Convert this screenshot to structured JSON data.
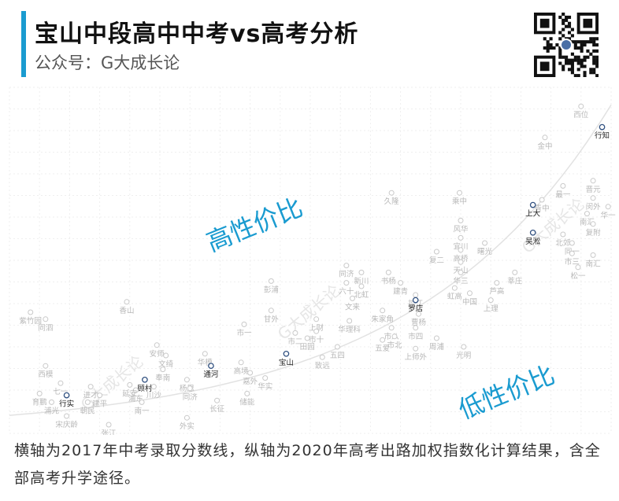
{
  "header": {
    "title": "宝山中段高中中考vs高考分析",
    "subtitle": "公众号：G大成长论",
    "accent_color": "#1a9bd0"
  },
  "chart_data": {
    "type": "scatter",
    "x_metric": "2017年中考录取分数线",
    "y_metric": "2020年高考出路加权指数",
    "xlim": [
      0,
      100
    ],
    "ylim": [
      0,
      100
    ],
    "grid": true,
    "trend": "curve",
    "region_labels": {
      "above": "高性价比",
      "below": "低性价比"
    },
    "watermark": "G大成长论",
    "highlight_color": "#2f4f7f",
    "point_color": "#c9c9c9",
    "points": [
      {
        "name": "西位",
        "x": 95.0,
        "y": 94.5,
        "hl": false
      },
      {
        "name": "行知",
        "x": 98.5,
        "y": 88.5,
        "hl": true
      },
      {
        "name": "金中",
        "x": 89.0,
        "y": 85.5,
        "hl": false
      },
      {
        "name": "久隆",
        "x": 63.5,
        "y": 69.5,
        "hl": false
      },
      {
        "name": "乘中",
        "x": 74.8,
        "y": 69.5,
        "hl": false
      },
      {
        "name": "最一",
        "x": 92.0,
        "y": 71.5,
        "hl": false
      },
      {
        "name": "晋元",
        "x": 97.0,
        "y": 73.0,
        "hl": false
      },
      {
        "name": "闵外",
        "x": 97.0,
        "y": 68.0,
        "hl": false
      },
      {
        "name": "华一",
        "x": 99.5,
        "y": 65.5,
        "hl": false
      },
      {
        "name": "青中",
        "x": 88.5,
        "y": 67.5,
        "hl": false
      },
      {
        "name": "上大",
        "x": 87.0,
        "y": 66.0,
        "hl": true
      },
      {
        "name": "南汇",
        "x": 96.0,
        "y": 63.5,
        "hl": false
      },
      {
        "name": "复附",
        "x": 97.0,
        "y": 60.5,
        "hl": false
      },
      {
        "name": "风华",
        "x": 75.0,
        "y": 61.5,
        "hl": false
      },
      {
        "name": "吴淞",
        "x": 87.0,
        "y": 58.0,
        "hl": true
      },
      {
        "name": "北郊",
        "x": 92.0,
        "y": 57.5,
        "hl": false
      },
      {
        "name": "宜川",
        "x": 75.0,
        "y": 56.5,
        "hl": false
      },
      {
        "name": "曙光",
        "x": 79.0,
        "y": 55.0,
        "hl": false
      },
      {
        "name": "同一",
        "x": 93.5,
        "y": 55.0,
        "hl": false
      },
      {
        "name": "高桥",
        "x": 75.0,
        "y": 53.0,
        "hl": false
      },
      {
        "name": "市三",
        "x": 93.5,
        "y": 52.0,
        "hl": false
      },
      {
        "name": "南汇",
        "x": 97.0,
        "y": 51.5,
        "hl": false
      },
      {
        "name": "复二",
        "x": 71.0,
        "y": 52.5,
        "hl": false
      },
      {
        "name": "天山",
        "x": 75.0,
        "y": 49.5,
        "hl": false
      },
      {
        "name": "松一",
        "x": 94.5,
        "y": 48.0,
        "hl": false
      },
      {
        "name": "华三",
        "x": 75.0,
        "y": 46.5,
        "hl": false
      },
      {
        "name": "莘庄",
        "x": 84.0,
        "y": 46.5,
        "hl": false
      },
      {
        "name": "芦高",
        "x": 81.0,
        "y": 43.5,
        "hl": false
      },
      {
        "name": "中国",
        "x": 76.5,
        "y": 40.5,
        "hl": false
      },
      {
        "name": "虹高",
        "x": 74.0,
        "y": 42.0,
        "hl": false
      },
      {
        "name": "上理",
        "x": 80.0,
        "y": 38.5,
        "hl": false
      },
      {
        "name": "同济",
        "x": 56.0,
        "y": 48.5,
        "hl": false
      },
      {
        "name": "新川",
        "x": 58.5,
        "y": 46.5,
        "hl": false
      },
      {
        "name": "书杨",
        "x": 63.0,
        "y": 46.5,
        "hl": false
      },
      {
        "name": "彭浦",
        "x": 43.5,
        "y": 44.0,
        "hl": false
      },
      {
        "name": "六十",
        "x": 56.0,
        "y": 43.5,
        "hl": false
      },
      {
        "name": "北虹",
        "x": 58.5,
        "y": 42.5,
        "hl": false
      },
      {
        "name": "建青",
        "x": 65.0,
        "y": 43.5,
        "hl": false
      },
      {
        "name": "控江",
        "x": 67.5,
        "y": 40.0,
        "hl": false
      },
      {
        "name": "文来",
        "x": 57.0,
        "y": 39.0,
        "hl": false
      },
      {
        "name": "罗店",
        "x": 67.5,
        "y": 38.5,
        "hl": true
      },
      {
        "name": "香山",
        "x": 19.5,
        "y": 38.0,
        "hl": false
      },
      {
        "name": "紫竹园",
        "x": 3.5,
        "y": 35.0,
        "hl": false
      },
      {
        "name": "甘外",
        "x": 43.5,
        "y": 35.5,
        "hl": false
      },
      {
        "name": "朱家角",
        "x": 62.0,
        "y": 35.5,
        "hl": false
      },
      {
        "name": "曹杨",
        "x": 68.0,
        "y": 34.5,
        "hl": false
      },
      {
        "name": "同泗",
        "x": 6.0,
        "y": 33.0,
        "hl": false
      },
      {
        "name": "华理科",
        "x": 56.5,
        "y": 32.5,
        "hl": false
      },
      {
        "name": "上财",
        "x": 51.0,
        "y": 33.0,
        "hl": false
      },
      {
        "name": "市一",
        "x": 39.0,
        "y": 31.5,
        "hl": false
      },
      {
        "name": "市八",
        "x": 63.5,
        "y": 30.5,
        "hl": false
      },
      {
        "name": "市四",
        "x": 67.5,
        "y": 30.5,
        "hl": false
      },
      {
        "name": "市十",
        "x": 51.0,
        "y": 29.5,
        "hl": false
      },
      {
        "name": "市二",
        "x": 47.5,
        "y": 29.0,
        "hl": false
      },
      {
        "name": "市北",
        "x": 64.0,
        "y": 28.0,
        "hl": false
      },
      {
        "name": "五爱",
        "x": 62.0,
        "y": 27.0,
        "hl": false
      },
      {
        "name": "周浦",
        "x": 71.0,
        "y": 27.5,
        "hl": false
      },
      {
        "name": "田园",
        "x": 49.5,
        "y": 27.5,
        "hl": false
      },
      {
        "name": "五四",
        "x": 54.5,
        "y": 25.0,
        "hl": false
      },
      {
        "name": "上师外",
        "x": 67.5,
        "y": 24.5,
        "hl": false
      },
      {
        "name": "光明",
        "x": 75.5,
        "y": 25.0,
        "hl": false
      },
      {
        "name": "安师",
        "x": 24.5,
        "y": 25.5,
        "hl": false
      },
      {
        "name": "华模",
        "x": 32.5,
        "y": 23.0,
        "hl": false
      },
      {
        "name": "宝山",
        "x": 46.0,
        "y": 23.0,
        "hl": true
      },
      {
        "name": "致远",
        "x": 52.0,
        "y": 22.0,
        "hl": false
      },
      {
        "name": "文绮",
        "x": 26.0,
        "y": 22.5,
        "hl": false
      },
      {
        "name": "西模",
        "x": 6.0,
        "y": 19.5,
        "hl": false
      },
      {
        "name": "通河",
        "x": 33.5,
        "y": 19.5,
        "hl": true
      },
      {
        "name": "高境",
        "x": 38.5,
        "y": 20.5,
        "hl": false
      },
      {
        "name": "嘉外",
        "x": 40.0,
        "y": 17.5,
        "hl": false
      },
      {
        "name": "华实",
        "x": 42.5,
        "y": 16.0,
        "hl": false
      },
      {
        "name": "奉南",
        "x": 25.5,
        "y": 18.5,
        "hl": false
      },
      {
        "name": "杨思",
        "x": 29.5,
        "y": 15.5,
        "hl": false
      },
      {
        "name": "顾村",
        "x": 22.5,
        "y": 15.5,
        "hl": true
      },
      {
        "name": "七一",
        "x": 8.5,
        "y": 14.5,
        "hl": false
      },
      {
        "name": "川沙",
        "x": 24.0,
        "y": 13.5,
        "hl": false
      },
      {
        "name": "同济",
        "x": 30.0,
        "y": 13.0,
        "hl": false
      },
      {
        "name": "储能",
        "x": 39.5,
        "y": 11.5,
        "hl": false
      },
      {
        "name": "浦东",
        "x": 21.0,
        "y": 12.5,
        "hl": false
      },
      {
        "name": "延安",
        "x": 20.0,
        "y": 14.0,
        "hl": false
      },
      {
        "name": "进才",
        "x": 13.5,
        "y": 13.5,
        "hl": false
      },
      {
        "name": "建平",
        "x": 15.0,
        "y": 11.0,
        "hl": false
      },
      {
        "name": "育鹏",
        "x": 5.0,
        "y": 11.5,
        "hl": false
      },
      {
        "name": "浦光",
        "x": 7.0,
        "y": 9.0,
        "hl": false
      },
      {
        "name": "行实",
        "x": 9.5,
        "y": 11.0,
        "hl": true
      },
      {
        "name": "朝民",
        "x": 13.0,
        "y": 9.0,
        "hl": false
      },
      {
        "name": "南一",
        "x": 22.0,
        "y": 9.0,
        "hl": false
      },
      {
        "name": "长征",
        "x": 34.5,
        "y": 9.5,
        "hl": false
      },
      {
        "name": "外实",
        "x": 29.5,
        "y": 4.5,
        "hl": false
      },
      {
        "name": "宋庆龄",
        "x": 9.5,
        "y": 5.0,
        "hl": false
      },
      {
        "name": "张江",
        "x": 16.5,
        "y": 2.5,
        "hl": false
      }
    ]
  },
  "caption": "横轴为2017年中考录取分数线，纵轴为2020年高考出路加权指数化计算结果，含全部高考升学途径。"
}
